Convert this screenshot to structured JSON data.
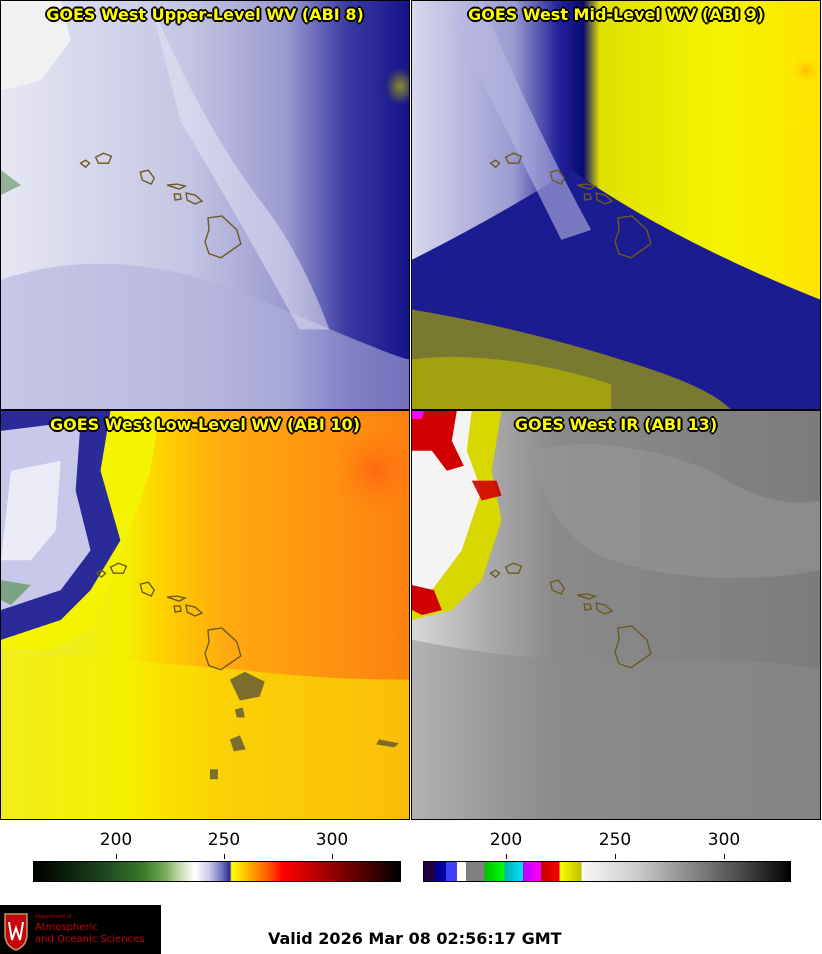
{
  "panels": [
    {
      "title": "GOES West Upper-Level WV (ABI 8)"
    },
    {
      "title": "GOES West Mid-Level WV (ABI 9)"
    },
    {
      "title": "GOES West Low-Level WV (ABI 10)"
    },
    {
      "title": "GOES West IR (ABI 13)"
    }
  ],
  "colorbars": {
    "left": {
      "ticks": [
        "200",
        "250",
        "300"
      ]
    },
    "right": {
      "ticks": [
        "200",
        "250",
        "300"
      ]
    }
  },
  "logo": {
    "department": "Department of",
    "name_line1": "Atmospheric",
    "name_line2": "and Oceanic Sciences"
  },
  "valid_time": "Valid 2026 Mar 08 02:56:17 GMT",
  "colors": {
    "title_text": "#ffff00",
    "logo_red": "#c5050c",
    "island_outline": "#6b5a1e"
  }
}
